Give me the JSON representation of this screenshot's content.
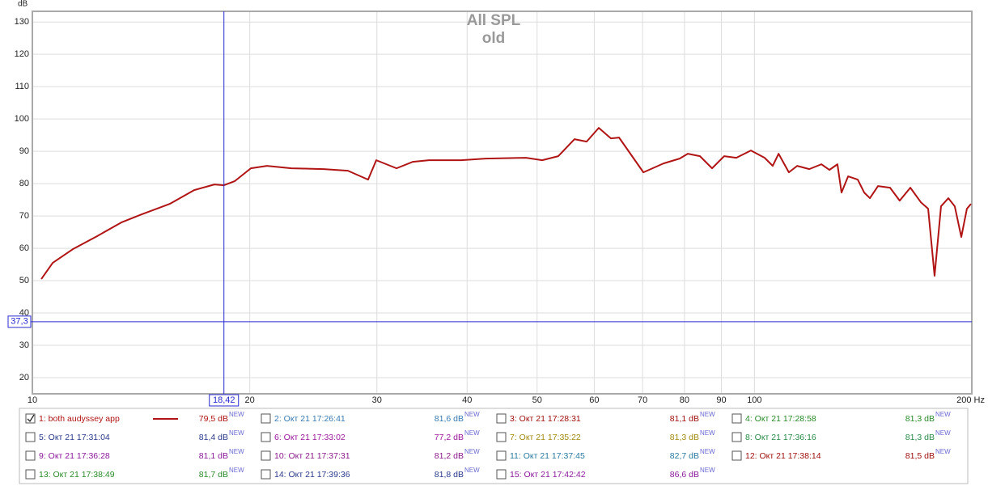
{
  "chart_data": {
    "type": "line",
    "title": "All SPL",
    "subtitle": "old",
    "y_label": "dB",
    "log_x": true,
    "grid": true,
    "x": [
      10.29,
      10.67,
      11.37,
      12.29,
      13.28,
      14.17,
      15.5,
      16.75,
      17.87,
      18.42,
      19.06,
      20.07,
      21.13,
      22.84,
      25.32,
      27.35,
      29.17,
      29.94,
      31.94,
      33.63,
      35.41,
      39.26,
      42.42,
      48.27,
      50.82,
      53.5,
      56.33,
      58.56,
      60.87,
      63.27,
      64.94,
      70.18,
      74.83,
      78.78,
      80.85,
      84.05,
      87.36,
      90.8,
      94.38,
      98.88,
      103.3,
      106.0,
      108.0,
      111.6,
      114.6,
      119.1,
      123.8,
      127.0,
      130.3,
      132.0,
      134.8,
      139.0,
      141.9,
      144.5,
      148.3,
      154.1,
      158.9,
      164.4,
      170.0,
      174.0,
      177.6,
      181.3,
      185.6,
      189.4,
      193.4,
      196.9,
      199.5
    ],
    "series": [
      {
        "color": "#b01414",
        "values": [
          50.5,
          55.5,
          59.7,
          63.75,
          68,
          70.5,
          73.75,
          78,
          79.75,
          79.5,
          80.75,
          84.75,
          85.5,
          84.75,
          84.5,
          84,
          81.25,
          87.25,
          84.75,
          86.75,
          87.25,
          87.25,
          87.75,
          88,
          87.25,
          88.5,
          93.75,
          93,
          97.25,
          94,
          94.25,
          83.5,
          86.25,
          87.75,
          89.25,
          88.5,
          84.75,
          88.5,
          88,
          90.25,
          88,
          85.5,
          89.25,
          83.5,
          85.5,
          84.5,
          86,
          84.25,
          86,
          77.25,
          82.25,
          81.25,
          77.25,
          75.5,
          79.25,
          78.75,
          74.75,
          78.75,
          74.25,
          72.25,
          51.5,
          73,
          75.5,
          73,
          63.5,
          72.25,
          73.75
        ]
      }
    ],
    "xlim": [
      10,
      200
    ],
    "ylim": [
      15,
      133.3
    ],
    "xticks": [
      10,
      20,
      30,
      40,
      50,
      60,
      70,
      80,
      90,
      100,
      {
        "value": 200,
        "label": "200 Hz"
      }
    ],
    "yticks": [
      20,
      30,
      40,
      50,
      60,
      70,
      80,
      90,
      100,
      110,
      120,
      130
    ],
    "cursor": {
      "x": {
        "value": 18.42,
        "label": "18,42"
      },
      "y": {
        "value": 37.3,
        "label": "37,3"
      },
      "color": "#2a2ad0"
    }
  },
  "legend": {
    "badge": "NEW",
    "entries": [
      {
        "name": "1: both audyssey app",
        "level": "79,5 dB",
        "color": "#b01414",
        "checked": true
      },
      {
        "name": "2: Окт 21 17:26:41",
        "level": "81,6 dB",
        "color": "#3a7ab0",
        "checked": false
      },
      {
        "name": "3: Окт 21 17:28:31",
        "level": "81,1 dB",
        "color": "#a01010",
        "checked": false
      },
      {
        "name": "4: Окт 21 17:28:58",
        "level": "81,3 dB",
        "color": "#2a8a2a",
        "checked": false
      },
      {
        "name": "5: Окт 21 17:31:04",
        "level": "81,4 dB",
        "color": "#2a3a8a",
        "checked": false
      },
      {
        "name": "6: Окт 21 17:33:02",
        "level": "77,2 dB",
        "color": "#9a1a9a",
        "checked": false
      },
      {
        "name": "7: Окт 21 17:35:22",
        "level": "81,3 dB",
        "color": "#a08a10",
        "checked": false
      },
      {
        "name": "8: Окт 21 17:36:16",
        "level": "81,3 dB",
        "color": "#2a8a4a",
        "checked": false
      },
      {
        "name": "9: Окт 21 17:36:28",
        "level": "81,1 dB",
        "color": "#8a1a9a",
        "checked": false
      },
      {
        "name": "10: Окт 21 17:37:31",
        "level": "81,2 dB",
        "color": "#8a1a8a",
        "checked": false
      },
      {
        "name": "11: Окт 21 17:37:45",
        "level": "82,7 dB",
        "color": "#2a7aa0",
        "checked": false
      },
      {
        "name": "12: Окт 21 17:38:14",
        "level": "81,5 dB",
        "color": "#a01010",
        "checked": false
      },
      {
        "name": "13: Окт 21 17:38:49",
        "level": "81,7 dB",
        "color": "#2a8a2a",
        "checked": false
      },
      {
        "name": "14: Окт 21 17:39:36",
        "level": "81,8 dB",
        "color": "#2a3a8a",
        "checked": false
      },
      {
        "name": "15: Окт 21 17:42:42",
        "level": "86,6 dB",
        "color": "#8a1a9a",
        "checked": false
      }
    ]
  }
}
